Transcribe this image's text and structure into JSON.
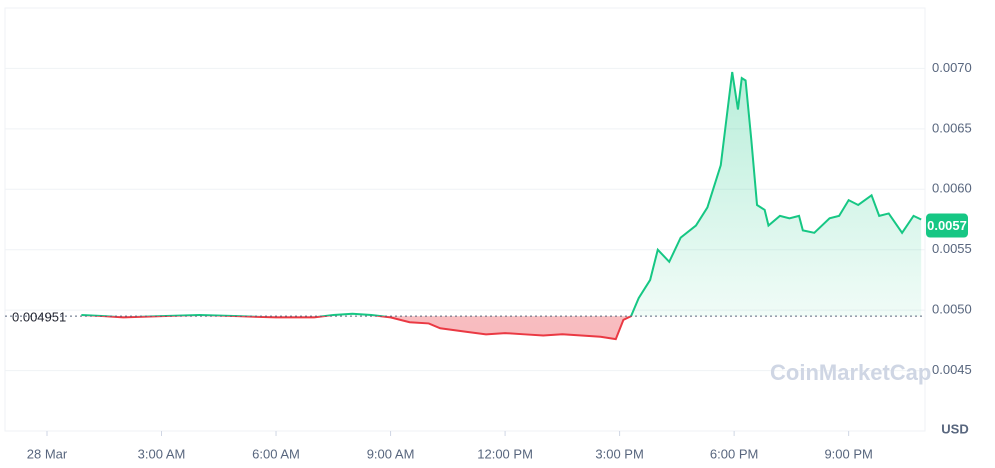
{
  "chart_data": {
    "type": "line",
    "x": [
      0.9,
      1.5,
      2,
      3,
      4,
      5,
      6,
      7,
      7.5,
      8,
      8.5,
      9,
      9.5,
      10,
      10.3,
      11,
      11.5,
      12,
      12.5,
      13,
      13.5,
      14,
      14.5,
      14.9,
      15.1,
      15.3,
      15.5,
      15.8,
      16,
      16.3,
      16.6,
      17,
      17.3,
      17.65,
      17.95,
      18.1,
      18.2,
      18.3,
      18.45,
      18.6,
      18.8,
      18.9,
      19.2,
      19.45,
      19.7,
      19.8,
      20.1,
      20.5,
      20.75,
      21,
      21.25,
      21.6,
      21.8,
      22.05,
      22.4,
      22.7,
      22.9
    ],
    "values": [
      0.00496,
      0.00495,
      0.00494,
      0.00495,
      0.00496,
      0.00495,
      0.00494,
      0.00494,
      0.00496,
      0.00497,
      0.00496,
      0.00494,
      0.0049,
      0.00489,
      0.00485,
      0.00482,
      0.0048,
      0.00481,
      0.0048,
      0.00479,
      0.0048,
      0.00479,
      0.00478,
      0.00476,
      0.00492,
      0.00495,
      0.0051,
      0.00525,
      0.0055,
      0.0054,
      0.0056,
      0.0057,
      0.00585,
      0.0062,
      0.00697,
      0.00666,
      0.00692,
      0.0069,
      0.00641,
      0.00587,
      0.00583,
      0.0057,
      0.00578,
      0.00576,
      0.00578,
      0.00566,
      0.00564,
      0.00576,
      0.00578,
      0.00591,
      0.00587,
      0.00595,
      0.00578,
      0.0058,
      0.00564,
      0.00578,
      0.00575
    ],
    "up_color": "#16c784",
    "down_color": "#ea3943",
    "baseline": 0.004951,
    "last_price": 0.0057,
    "currency": "USD",
    "watermark": "CoinMarketCap",
    "xlim": [
      -1.1,
      23
    ],
    "xticks": [
      {
        "value": 0,
        "label": "28 Mar"
      },
      {
        "value": 3,
        "label": "3:00 AM"
      },
      {
        "value": 6,
        "label": "6:00 AM"
      },
      {
        "value": 9,
        "label": "9:00 AM"
      },
      {
        "value": 12,
        "label": "12:00 PM"
      },
      {
        "value": 15,
        "label": "3:00 PM"
      },
      {
        "value": 18,
        "label": "6:00 PM"
      },
      {
        "value": 21,
        "label": "9:00 PM"
      }
    ],
    "ylim": [
      0.004,
      0.0075
    ],
    "yticks": [
      0.0045,
      {
        "value": 0.005,
        "label": "0.0050"
      },
      0.0055,
      {
        "value": 0.006,
        "label": "0.0060"
      },
      0.0065,
      {
        "value": 0.007,
        "label": "0.0070"
      }
    ],
    "grid": true
  }
}
